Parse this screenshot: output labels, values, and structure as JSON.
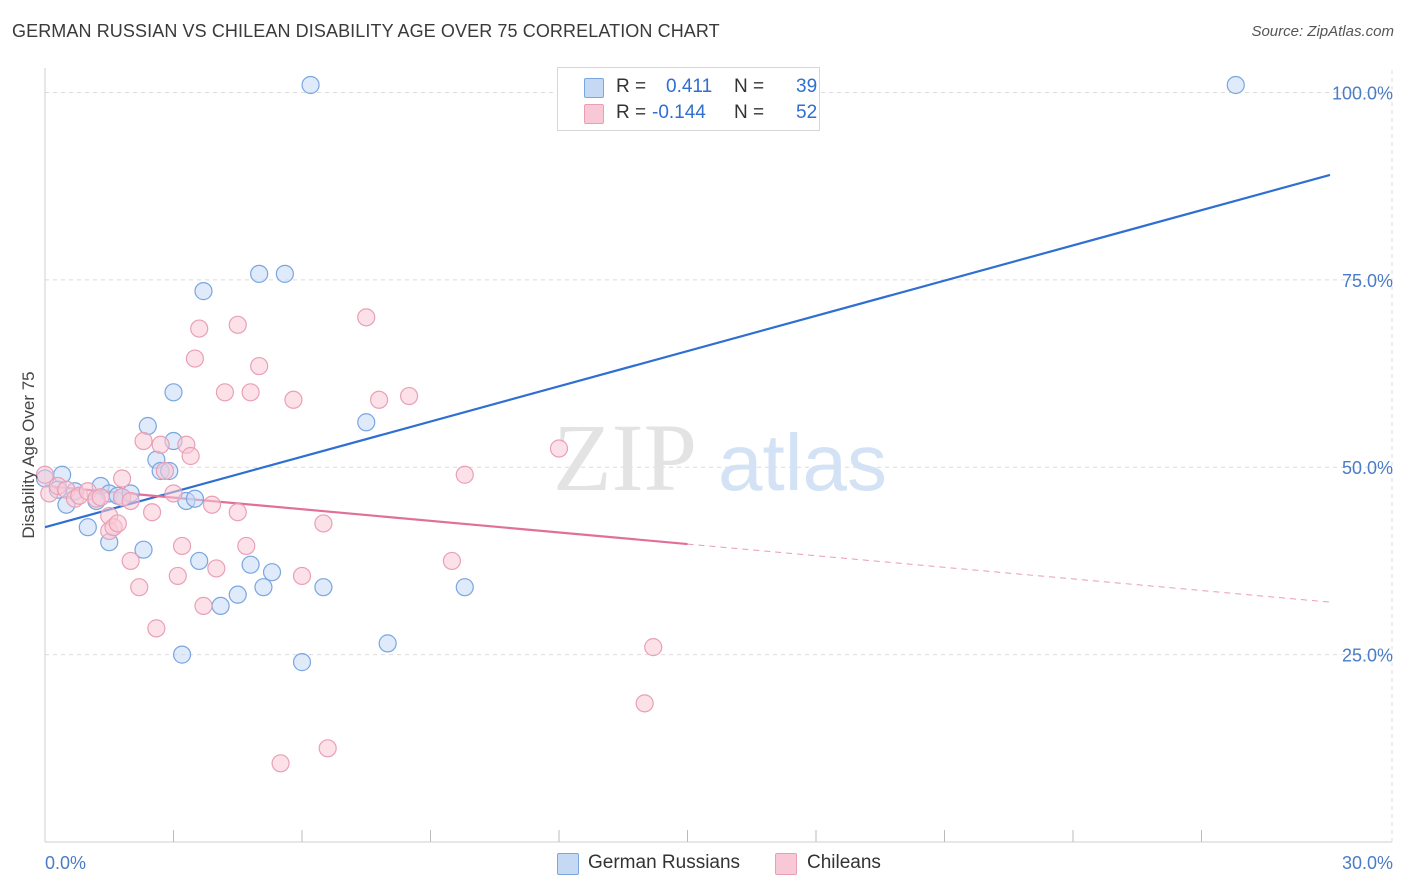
{
  "header": {
    "title": "GERMAN RUSSIAN VS CHILEAN DISABILITY AGE OVER 75 CORRELATION CHART",
    "source": "Source: ZipAtlas.com"
  },
  "watermark": {
    "zip": "ZIP",
    "atlas": "atlas"
  },
  "legend": {
    "r_label": "R =",
    "n_label": "N =",
    "rows": [
      {
        "name": "German Russians",
        "r": "0.411",
        "n": "39"
      },
      {
        "name": "Chileans",
        "r": "-0.144",
        "n": "52"
      }
    ]
  },
  "colors": {
    "blue_fill": "#c5d9f5",
    "blue_stroke": "#7aa6e0",
    "blue_line": "#2f6fd1",
    "pink_fill": "#f9c8d6",
    "pink_stroke": "#e9a0b6",
    "pink_line": "#e0709a"
  },
  "chart_data": {
    "type": "scatter",
    "title": "GERMAN RUSSIAN VS CHILEAN DISABILITY AGE OVER 75 CORRELATION CHART",
    "xlabel": "",
    "ylabel": "Disability Age Over 75",
    "xlim": [
      0,
      30
    ],
    "ylim": [
      0,
      103
    ],
    "x_tick_labels": [
      {
        "value": 0,
        "label": "0.0%"
      },
      {
        "value": 30,
        "label": "30.0%"
      }
    ],
    "y_tick_labels": [
      {
        "value": 25,
        "label": "25.0%"
      },
      {
        "value": 50,
        "label": "50.0%"
      },
      {
        "value": 75,
        "label": "75.0%"
      },
      {
        "value": 100,
        "label": "100.0%"
      }
    ],
    "x_minor_ticks": [
      3,
      6,
      9,
      12,
      15,
      18,
      21,
      24,
      27
    ],
    "series": [
      {
        "name": "German Russians",
        "r": 0.411,
        "n": 39,
        "trend": {
          "x0": 0,
          "y0": 42,
          "x1": 30,
          "y1": 89,
          "solid_until": 30
        },
        "points": [
          [
            0.0,
            48.5
          ],
          [
            0.4,
            49.0
          ],
          [
            0.5,
            45.0
          ],
          [
            0.7,
            46.8
          ],
          [
            1.0,
            42.0
          ],
          [
            1.3,
            47.5
          ],
          [
            1.5,
            46.5
          ],
          [
            1.5,
            40.0
          ],
          [
            1.7,
            46.2
          ],
          [
            1.8,
            46.0
          ],
          [
            2.4,
            55.5
          ],
          [
            2.0,
            46.5
          ],
          [
            2.3,
            39.0
          ],
          [
            2.6,
            51.0
          ],
          [
            2.7,
            49.5
          ],
          [
            2.9,
            49.5
          ],
          [
            3.0,
            60.0
          ],
          [
            3.0,
            53.5
          ],
          [
            3.2,
            25.0
          ],
          [
            3.3,
            45.5
          ],
          [
            3.5,
            45.8
          ],
          [
            3.6,
            37.5
          ],
          [
            3.7,
            73.5
          ],
          [
            4.1,
            31.5
          ],
          [
            4.5,
            33.0
          ],
          [
            4.8,
            37.0
          ],
          [
            5.0,
            75.8
          ],
          [
            5.1,
            34.0
          ],
          [
            5.3,
            36.0
          ],
          [
            5.6,
            75.8
          ],
          [
            6.0,
            24.0
          ],
          [
            6.2,
            101.0
          ],
          [
            6.5,
            34.0
          ],
          [
            7.5,
            56.0
          ],
          [
            8.0,
            26.5
          ],
          [
            9.8,
            34.0
          ],
          [
            27.8,
            101.0
          ],
          [
            0.3,
            47.0
          ],
          [
            1.2,
            45.5
          ]
        ]
      },
      {
        "name": "Chileans",
        "r": -0.144,
        "n": 52,
        "trend": {
          "x0": 0,
          "y0": 47.5,
          "x1": 30,
          "y1": 32,
          "solid_until": 15
        },
        "points": [
          [
            0.0,
            49.0
          ],
          [
            0.1,
            46.5
          ],
          [
            0.3,
            47.5
          ],
          [
            0.5,
            47.0
          ],
          [
            0.7,
            45.8
          ],
          [
            0.8,
            46.2
          ],
          [
            1.0,
            46.8
          ],
          [
            1.2,
            45.8
          ],
          [
            1.3,
            46.0
          ],
          [
            1.5,
            43.5
          ],
          [
            1.5,
            41.5
          ],
          [
            1.6,
            42.0
          ],
          [
            1.7,
            42.5
          ],
          [
            1.8,
            46.0
          ],
          [
            1.8,
            48.5
          ],
          [
            2.0,
            45.5
          ],
          [
            2.0,
            37.5
          ],
          [
            2.2,
            34.0
          ],
          [
            2.3,
            53.5
          ],
          [
            2.5,
            44.0
          ],
          [
            2.6,
            28.5
          ],
          [
            2.7,
            53.0
          ],
          [
            2.8,
            49.5
          ],
          [
            3.0,
            46.5
          ],
          [
            3.1,
            35.5
          ],
          [
            3.2,
            39.5
          ],
          [
            3.3,
            53.0
          ],
          [
            3.4,
            51.5
          ],
          [
            3.5,
            64.5
          ],
          [
            3.6,
            68.5
          ],
          [
            3.7,
            31.5
          ],
          [
            3.9,
            45.0
          ],
          [
            4.0,
            36.5
          ],
          [
            4.2,
            60.0
          ],
          [
            4.5,
            69.0
          ],
          [
            4.5,
            44.0
          ],
          [
            4.7,
            39.5
          ],
          [
            4.8,
            60.0
          ],
          [
            5.0,
            63.5
          ],
          [
            5.5,
            10.5
          ],
          [
            5.8,
            59.0
          ],
          [
            6.0,
            35.5
          ],
          [
            6.5,
            42.5
          ],
          [
            6.6,
            12.5
          ],
          [
            7.5,
            70.0
          ],
          [
            7.8,
            59.0
          ],
          [
            8.5,
            59.5
          ],
          [
            9.5,
            37.5
          ],
          [
            9.8,
            49.0
          ],
          [
            12.0,
            52.5
          ],
          [
            14.2,
            26.0
          ],
          [
            14.0,
            18.5
          ]
        ]
      }
    ]
  }
}
